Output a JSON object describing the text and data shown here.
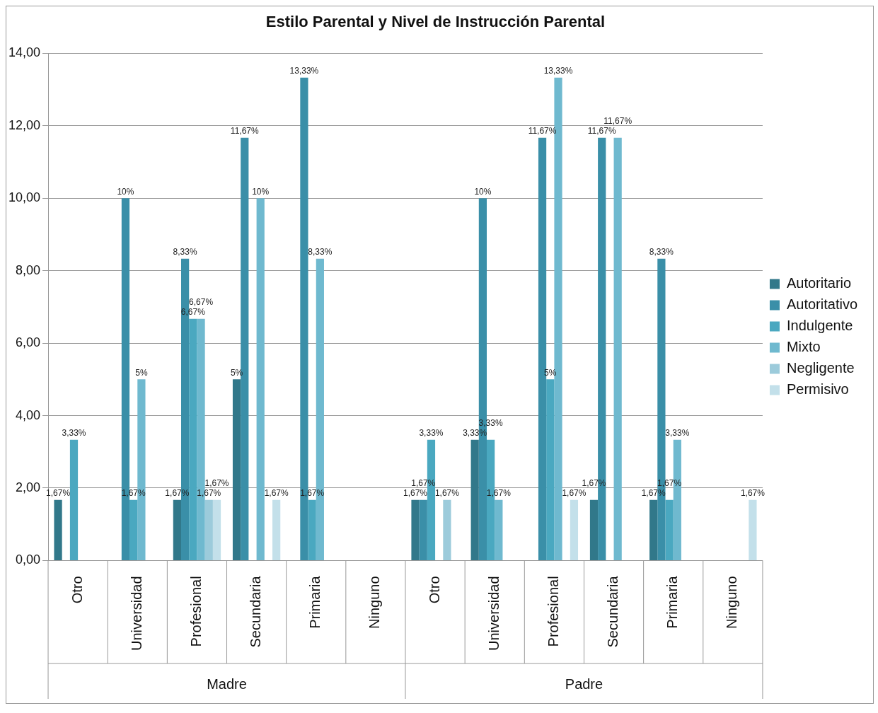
{
  "chart_data": {
    "type": "bar",
    "title": "Estilo Parental y Nivel de Instrucción Parental",
    "categories": [
      "Otro",
      "Universidad",
      "Profesional",
      "Secundaria",
      "Primaria",
      "Ninguno",
      "Otro",
      "Universidad",
      "Profesional",
      "Secundaria",
      "Primaria",
      "Ninguno"
    ],
    "annotations": [
      "Madre",
      "Padre"
    ],
    "series": [
      {
        "name": "Autoritario",
        "color": "#31788a",
        "values": [
          1.67,
          null,
          1.67,
          5,
          null,
          null,
          1.67,
          3.33,
          null,
          1.67,
          1.67,
          null
        ],
        "value_labels": [
          "1,67%",
          null,
          "1,67%",
          "5%",
          null,
          null,
          "1,67%",
          "3,33%",
          null,
          "1,67%",
          "1,67%",
          null
        ]
      },
      {
        "name": "Autoritativo",
        "color": "#3a8fa8",
        "values": [
          null,
          10,
          8.33,
          11.67,
          13.33,
          null,
          1.67,
          10,
          11.67,
          11.67,
          8.33,
          null
        ],
        "value_labels": [
          null,
          "10%",
          "8,33%",
          "11,67%",
          "13,33%",
          null,
          "1,67%",
          "10%",
          "11,67%",
          "11,67%",
          "8,33%",
          null
        ]
      },
      {
        "name": "Indulgente",
        "color": "#4aa8c0",
        "values": [
          3.33,
          1.67,
          6.67,
          null,
          1.67,
          null,
          3.33,
          3.33,
          5,
          null,
          1.67,
          null
        ],
        "value_labels": [
          "3,33%",
          "1,67%",
          "6,67%",
          null,
          "1,67%",
          null,
          "3,33%",
          "3,33%",
          "5%",
          null,
          "1,67%",
          null
        ]
      },
      {
        "name": "Mixto",
        "color": "#6fb9cf",
        "values": [
          null,
          5,
          6.67,
          10,
          8.33,
          null,
          null,
          1.67,
          13.33,
          11.67,
          3.33,
          null
        ],
        "value_labels": [
          null,
          "5%",
          "6,67%",
          "10%",
          "8,33%",
          null,
          null,
          "1,67%",
          "13,33%",
          "11,67%",
          "3,33%",
          null
        ]
      },
      {
        "name": "Negligente",
        "color": "#9ccbdb",
        "values": [
          null,
          null,
          1.67,
          null,
          null,
          null,
          1.67,
          null,
          null,
          null,
          null,
          null
        ],
        "value_labels": [
          null,
          null,
          "1,67%",
          null,
          null,
          null,
          "1,67%",
          null,
          null,
          null,
          null,
          null
        ]
      },
      {
        "name": "Permisivo",
        "color": "#c3e0ea",
        "values": [
          null,
          null,
          1.67,
          1.67,
          null,
          null,
          null,
          null,
          1.67,
          null,
          null,
          1.67
        ],
        "value_labels": [
          null,
          null,
          "1,67%",
          "1,67%",
          null,
          null,
          null,
          null,
          "1,67%",
          null,
          null,
          "1,67%"
        ]
      }
    ],
    "ylim": [
      0,
      14
    ],
    "yticks": [
      {
        "value": 0,
        "label": "0,00"
      },
      {
        "value": 2,
        "label": "2,00"
      },
      {
        "value": 4,
        "label": "4,00"
      },
      {
        "value": 6,
        "label": "6,00"
      },
      {
        "value": 8,
        "label": "8,00"
      },
      {
        "value": 10,
        "label": "10,00"
      },
      {
        "value": 12,
        "label": "12,00"
      },
      {
        "value": 14,
        "label": "14,00"
      }
    ],
    "grid": "y",
    "legend": "right"
  }
}
